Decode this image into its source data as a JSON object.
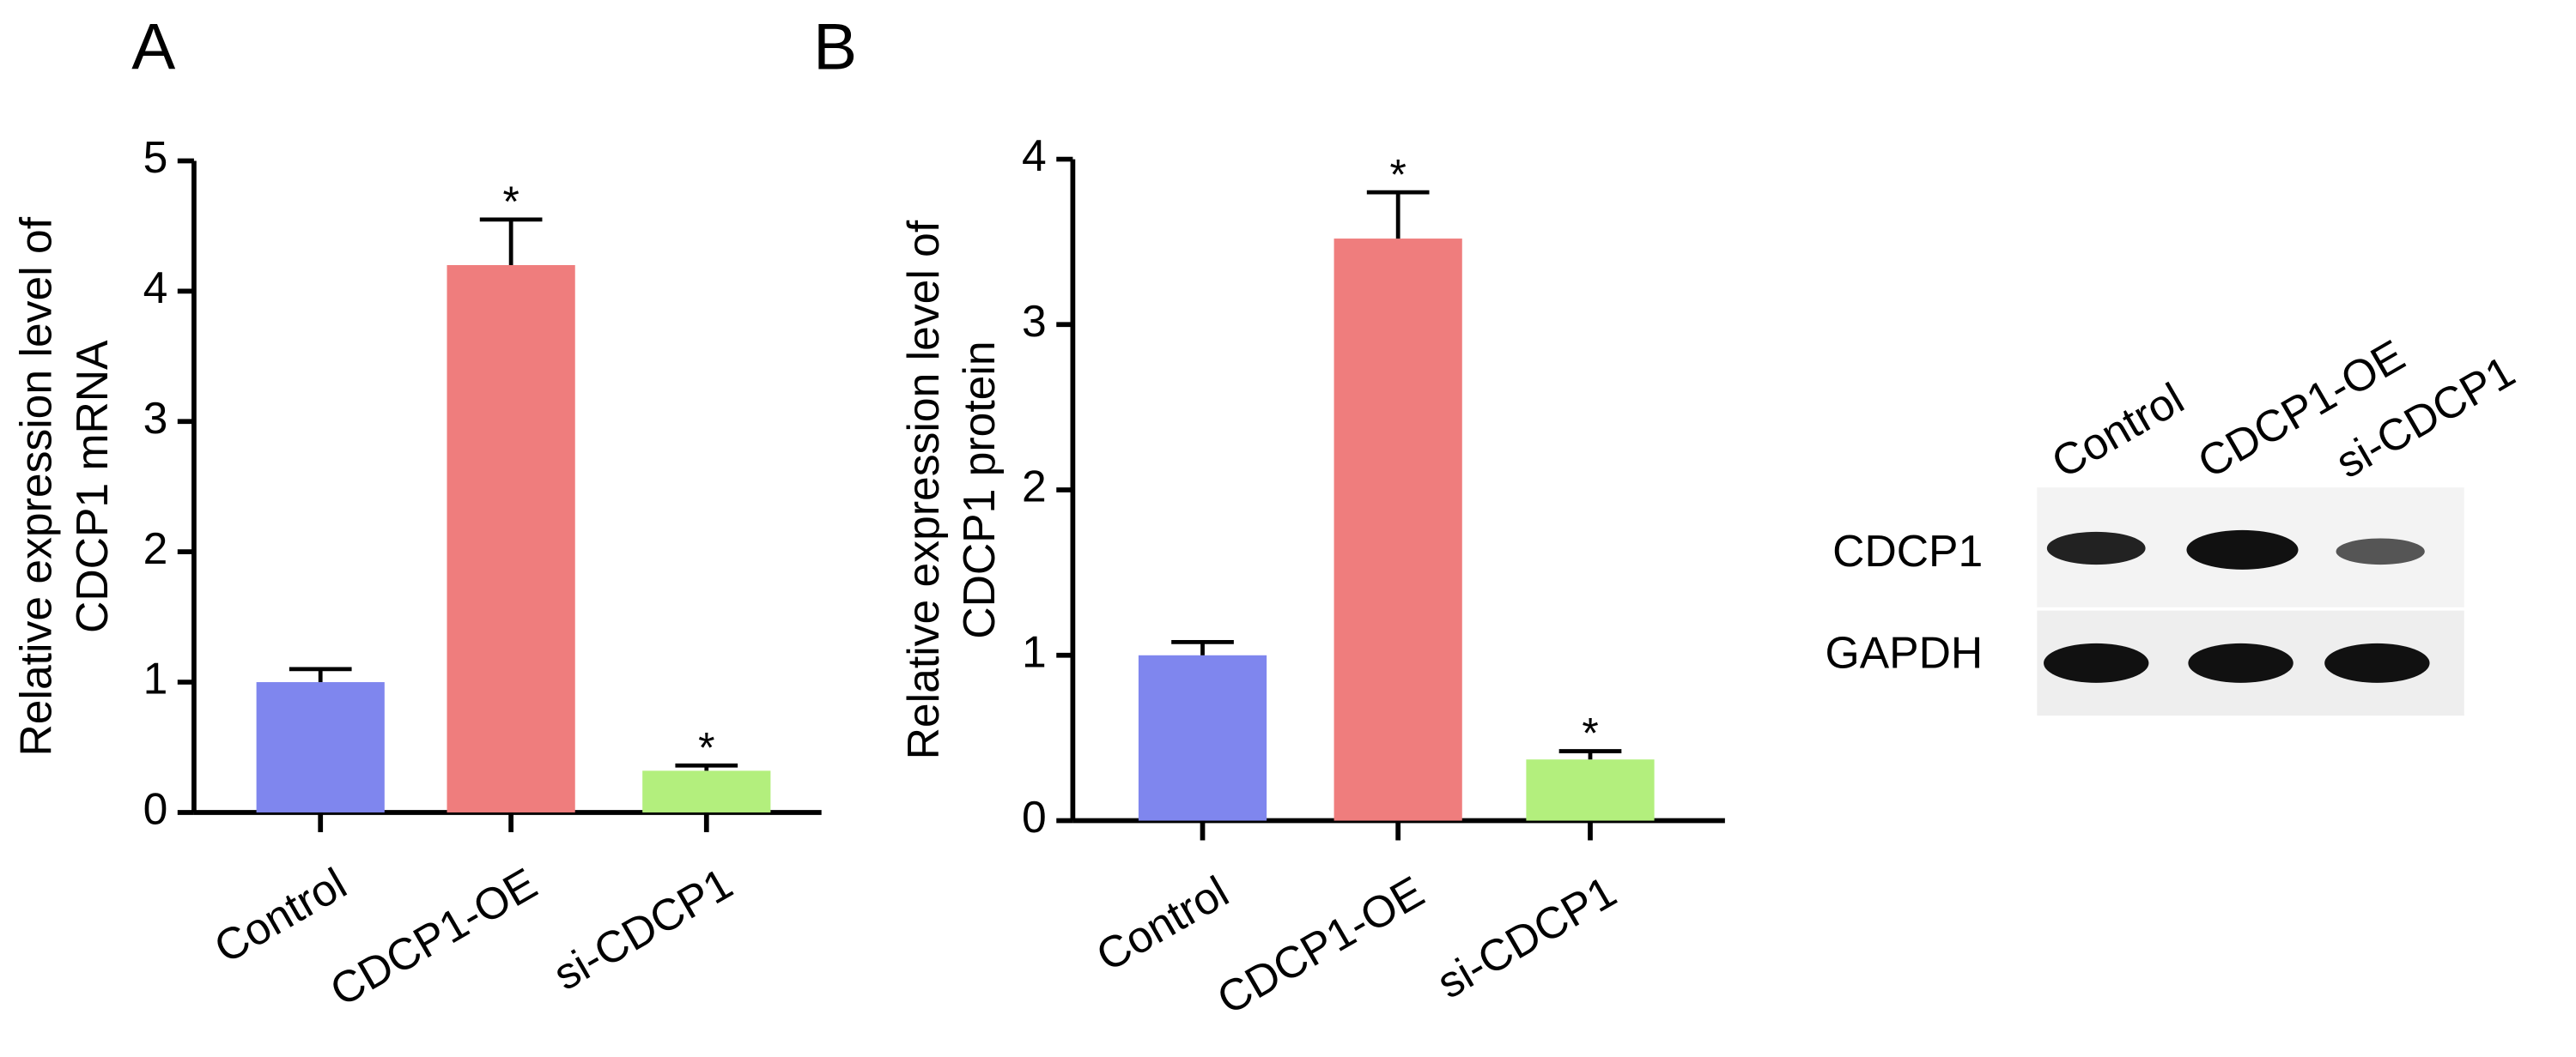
{
  "chart_data": [
    {
      "type": "bar",
      "panel": "A",
      "ylabel": [
        "Relative expression level of",
        "CDCP1 mRNA"
      ],
      "categories": [
        "Control",
        "CDCP1-OE",
        "si-CDCP1"
      ],
      "values": [
        1.0,
        4.2,
        0.32
      ],
      "errors": [
        0.1,
        0.35,
        0.04
      ],
      "colors": [
        "#7f86ee",
        "#ef7d7d",
        "#b3ef7d"
      ],
      "significance": [
        null,
        "*",
        "*"
      ],
      "ylim": [
        0,
        5
      ],
      "yticks": [
        0,
        1,
        2,
        3,
        4,
        5
      ]
    },
    {
      "type": "bar",
      "panel": "B",
      "ylabel": [
        "Relative expression level of",
        "CDCP1 protein"
      ],
      "categories": [
        "Control",
        "CDCP1-OE",
        "si-CDCP1"
      ],
      "values": [
        1.0,
        3.52,
        0.37
      ],
      "errors": [
        0.08,
        0.28,
        0.05
      ],
      "colors": [
        "#7f86ee",
        "#ef7d7d",
        "#b3ef7d"
      ],
      "significance": [
        null,
        "*",
        "*"
      ],
      "ylim": [
        0,
        4
      ],
      "yticks": [
        0,
        1,
        2,
        3,
        4
      ]
    }
  ],
  "blot": {
    "lanes": [
      "Control",
      "CDCP1-OE",
      "si-CDCP1"
    ],
    "rows": [
      "CDCP1",
      "GAPDH"
    ]
  }
}
